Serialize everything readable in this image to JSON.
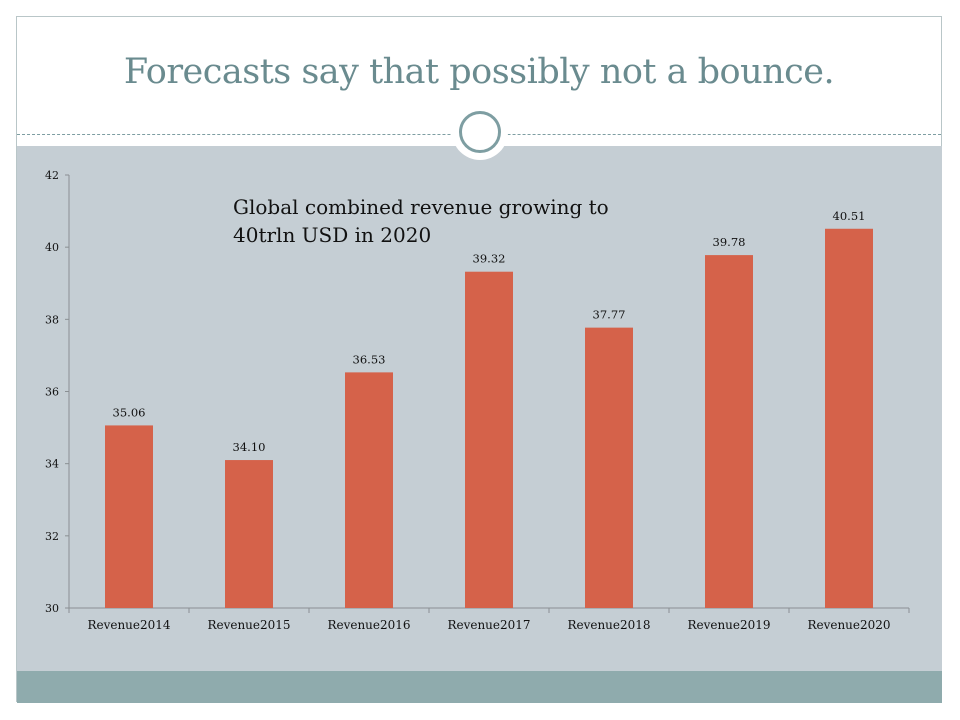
{
  "slide": {
    "title": "Forecasts say that possibly not a bounce."
  },
  "colors": {
    "title": "#6a8b8f",
    "panel": "#c5ced4",
    "footer": "#8fabad",
    "bar": "#d5624a",
    "axis": "#8a8f93"
  },
  "chart_data": {
    "type": "bar",
    "title": "",
    "annotation": [
      "Global combined revenue growing to",
      "40trln USD in 2020"
    ],
    "categories": [
      "Revenue2014",
      "Revenue2015",
      "Revenue2016",
      "Revenue2017",
      "Revenue2018",
      "Revenue2019",
      "Revenue2020"
    ],
    "values": [
      35.06,
      34.1,
      36.53,
      39.32,
      37.77,
      39.78,
      40.51
    ],
    "value_labels": [
      "35.06",
      "34.10",
      "36.53",
      "39.32",
      "37.77",
      "39.78",
      "40.51"
    ],
    "xlabel": "",
    "ylabel": "",
    "ylim": [
      30,
      42
    ],
    "yticks": [
      30,
      32,
      34,
      36,
      38,
      40,
      42
    ],
    "grid": false,
    "legend": "none"
  }
}
